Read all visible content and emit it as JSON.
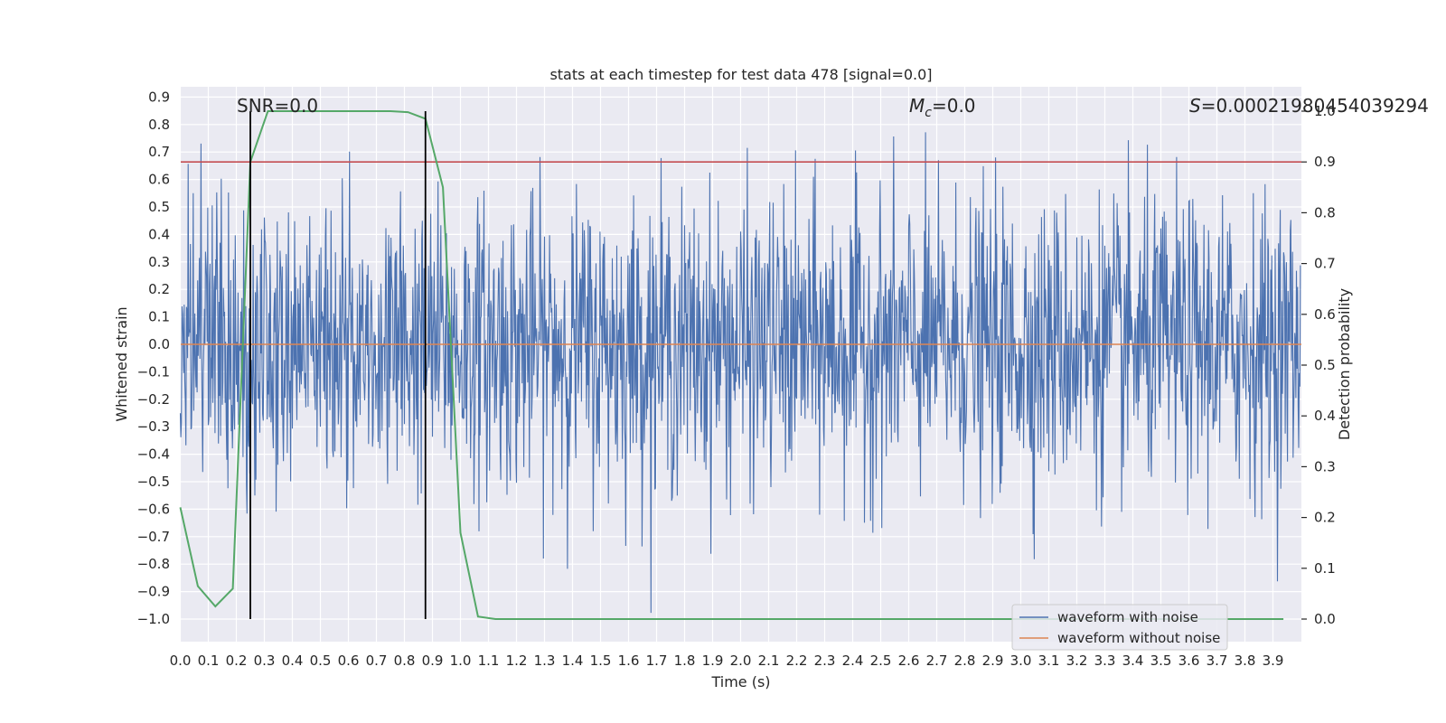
{
  "chart_data": {
    "type": "line",
    "title": "stats at each timestep for test data 478 [signal=0.0]",
    "xlabel": "Time (s)",
    "ylabel": "Whitened strain",
    "y2label": "Detection probability",
    "xlim": [
      0.0,
      4.0
    ],
    "ylim": [
      -1.09,
      0.93
    ],
    "y2lim": [
      -0.05,
      1.0
    ],
    "xticks": [
      "0.0",
      "0.1",
      "0.2",
      "0.3",
      "0.4",
      "0.5",
      "0.6",
      "0.7",
      "0.8",
      "0.9",
      "1.0",
      "1.1",
      "1.2",
      "1.3",
      "1.4",
      "1.5",
      "1.6",
      "1.7",
      "1.8",
      "1.9",
      "2.0",
      "2.1",
      "2.2",
      "2.3",
      "2.4",
      "2.5",
      "2.6",
      "2.7",
      "2.8",
      "2.9",
      "3.0",
      "3.1",
      "3.2",
      "3.3",
      "3.4",
      "3.5",
      "3.6",
      "3.7",
      "3.8",
      "3.9"
    ],
    "yticks": [
      "0.9",
      "0.8",
      "0.7",
      "0.6",
      "0.5",
      "0.4",
      "0.3",
      "0.2",
      "0.1",
      "0.0",
      "−0.1",
      "−0.2",
      "−0.3",
      "−0.4",
      "−0.5",
      "−0.6",
      "−0.7",
      "−0.8",
      "−0.9",
      "−1.0"
    ],
    "y2ticks": [
      "0.0",
      "0.1",
      "0.2",
      "0.3",
      "0.4",
      "0.5",
      "0.6",
      "0.7",
      "0.8",
      "0.9",
      "1.0"
    ],
    "annotations": {
      "snr": "SNR=0.0",
      "mc_symbol": "M",
      "mc_sub": "c",
      "mc_value": "=0.0",
      "s_symbol": "S",
      "s_value": "=0.00021980454039294"
    },
    "threshold": {
      "value": 0.9,
      "axis": "y2",
      "color": "#c44e52"
    },
    "vlines": [
      0.25,
      0.875
    ],
    "series": [
      {
        "name": "waveform with noise",
        "color": "#4c72b0",
        "kind": "noise",
        "note": "dense whitened-noise trace, amplitude roughly within ±0.5 with spikes to ±0.9",
        "dt": 0.002,
        "amplitude_sigma": 0.26,
        "y_min": -0.98,
        "y_max": 0.84
      },
      {
        "name": "waveform without noise",
        "color": "#dd8452",
        "values_constant": 0.0
      },
      {
        "name": "detection probability",
        "axis": "y2",
        "color": "#55a868",
        "x": [
          0.0,
          0.0625,
          0.125,
          0.1875,
          0.25,
          0.3125,
          0.375,
          0.4375,
          0.5,
          0.5625,
          0.625,
          0.6875,
          0.75,
          0.8125,
          0.875,
          0.9375,
          1.0,
          1.0625,
          1.125,
          1.1875,
          1.25,
          1.5,
          2.0,
          2.5,
          3.0,
          3.5,
          3.9375
        ],
        "y": [
          0.22,
          0.065,
          0.025,
          0.06,
          0.9,
          1.0,
          1.0,
          1.0,
          1.0,
          1.0,
          1.0,
          1.0,
          1.0,
          0.998,
          0.985,
          0.85,
          0.17,
          0.005,
          0.0,
          0.0,
          0.0,
          0.0,
          0.0,
          0.0,
          0.0,
          0.0,
          0.0
        ]
      }
    ],
    "legend": {
      "placement": "lower-right",
      "entries": [
        "waveform with noise",
        "waveform without noise"
      ]
    }
  }
}
